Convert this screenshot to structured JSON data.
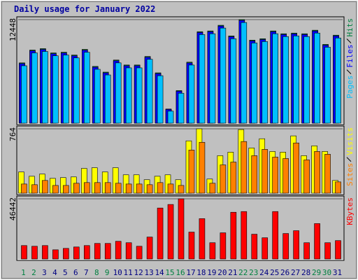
{
  "chart_data": [
    {
      "type": "bar",
      "title": "Daily usage for January 2022",
      "ylim": [
        0,
        12448
      ],
      "yticks": [
        12448
      ],
      "series": [
        {
          "name": "Pages",
          "color": "#00c0ff",
          "values": [
            6900,
            8450,
            8620,
            8100,
            8190,
            7850,
            8530,
            6480,
            5800,
            7250,
            6650,
            6650,
            7680,
            5710,
            1450,
            3600,
            6990,
            10650,
            10750,
            11430,
            10150,
            12100,
            9640,
            9810,
            10750,
            10410,
            10490,
            10410,
            10830,
            9130,
            10240
          ]
        },
        {
          "name": "Files",
          "color": "#0000ff",
          "values": [
            7150,
            8690,
            8860,
            8345,
            8430,
            8090,
            8770,
            6725,
            6040,
            7490,
            6895,
            6895,
            7920,
            5955,
            1655,
            3845,
            7235,
            10900,
            10990,
            11670,
            10390,
            12350,
            9880,
            10050,
            10990,
            10650,
            10730,
            10650,
            11075,
            9370,
            10480
          ]
        },
        {
          "name": "Hits",
          "color": "#008040",
          "values": [
            7250,
            8790,
            8960,
            8445,
            8530,
            8190,
            8870,
            6825,
            6140,
            7590,
            6995,
            6995,
            8020,
            6055,
            1705,
            3925,
            7335,
            11000,
            11090,
            11770,
            10490,
            12448,
            9980,
            10150,
            11090,
            10750,
            10830,
            10750,
            11175,
            9470,
            10580
          ]
        }
      ]
    },
    {
      "type": "bar",
      "ylim": [
        0,
        764
      ],
      "yticks": [
        764
      ],
      "series": [
        {
          "name": "Sites",
          "color": "#ff8000",
          "values": [
            109,
            101,
            151,
            92,
            92,
            118,
            126,
            126,
            126,
            118,
            109,
            109,
            101,
            126,
            109,
            92,
            512,
            604,
            118,
            336,
            369,
            613,
            445,
            520,
            428,
            411,
            596,
            395,
            495,
            462,
            134
          ]
        },
        {
          "name": "Visits",
          "color": "#ffff00",
          "values": [
            252,
            201,
            227,
            176,
            185,
            193,
            294,
            302,
            252,
            302,
            218,
            218,
            160,
            201,
            218,
            160,
            621,
            764,
            168,
            445,
            487,
            755,
            537,
            646,
            495,
            487,
            680,
            445,
            562,
            495,
            151
          ]
        }
      ]
    },
    {
      "type": "bar",
      "ylim": [
        0,
        46442
      ],
      "yticks": [
        46442
      ],
      "categories": [
        "1",
        "2",
        "3",
        "4",
        "5",
        "6",
        "7",
        "8",
        "9",
        "10",
        "11",
        "12",
        "13",
        "14",
        "15",
        "16",
        "17",
        "18",
        "19",
        "20",
        "21",
        "22",
        "23",
        "24",
        "25",
        "26",
        "27",
        "28",
        "29",
        "30",
        "31"
      ],
      "category_colors": [
        "#008040",
        "#008040",
        "#000080",
        "#000080",
        "#000080",
        "#000080",
        "#000080",
        "#008040",
        "#008040",
        "#000080",
        "#000080",
        "#000080",
        "#000080",
        "#000080",
        "#008040",
        "#008040",
        "#000080",
        "#000080",
        "#000080",
        "#000080",
        "#000080",
        "#008040",
        "#008040",
        "#000080",
        "#000080",
        "#000080",
        "#000080",
        "#000080",
        "#008040",
        "#008040",
        "#000080"
      ],
      "series": [
        {
          "name": "KBytes",
          "color": "#ff0000",
          "values": [
            10380,
            9835,
            10380,
            7100,
            8195,
            9290,
            10380,
            12020,
            12020,
            13660,
            12565,
            9835,
            16940,
            39340,
            42070,
            46442,
            20760,
            31140,
            12565,
            20215,
            36060,
            36605,
            19120,
            16390,
            36605,
            19670,
            21855,
            12565,
            27320,
            12565,
            14205
          ]
        }
      ]
    }
  ]
}
